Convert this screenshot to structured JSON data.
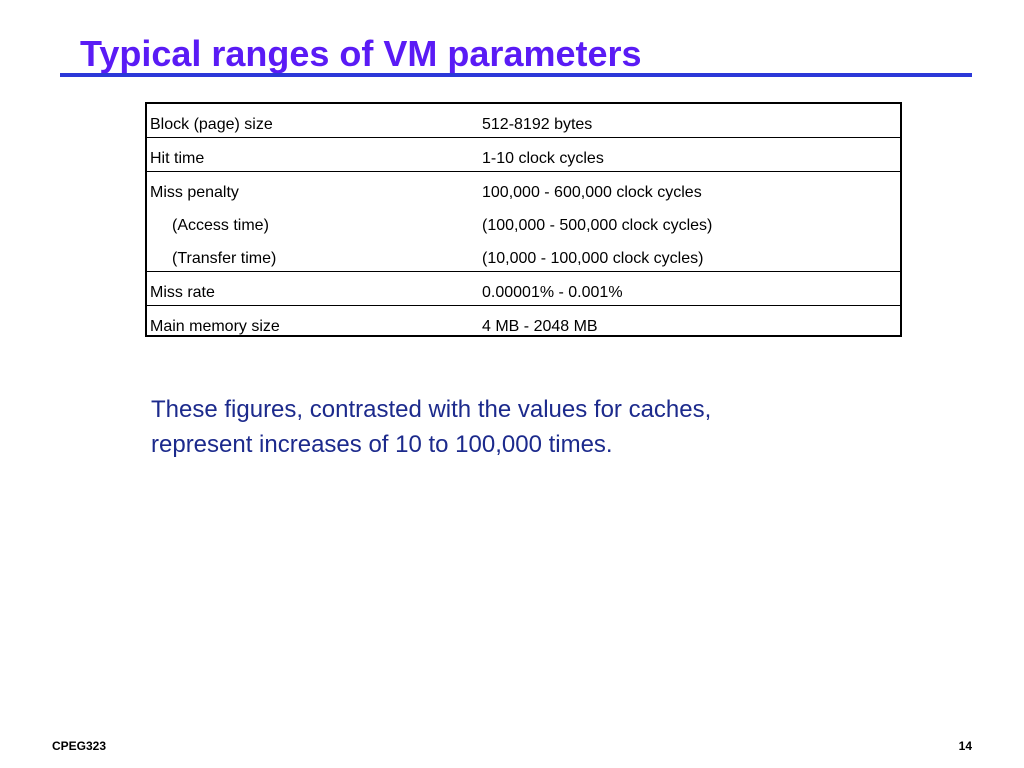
{
  "slide": {
    "title": "Typical ranges of VM parameters",
    "title_color": "#5a1bf5",
    "rule_color": "#2b38d8"
  },
  "table": {
    "groups": [
      {
        "rows": [
          {
            "label": "Block (page) size",
            "value": "512-8192 bytes"
          }
        ]
      },
      {
        "rows": [
          {
            "label": "Hit time",
            "value": "1-10 clock cycles"
          }
        ]
      },
      {
        "rows": [
          {
            "label": "Miss penalty",
            "value": "100,000 - 600,000 clock cycles"
          },
          {
            "label": "(Access time)",
            "value": "(100,000 - 500,000 clock cycles)"
          },
          {
            "label": "(Transfer time)",
            "value": "(10,000 - 100,000 clock cycles)"
          }
        ]
      },
      {
        "rows": [
          {
            "label": "Miss rate",
            "value": "0.00001% - 0.001%"
          }
        ]
      },
      {
        "rows": [
          {
            "label": "Main memory size",
            "value": "4 MB - 2048 MB"
          }
        ]
      }
    ]
  },
  "note": {
    "line1": "These figures, contrasted with the values for caches,",
    "line2": "represent increases of 10 to 100,000 times.",
    "color": "#1c2a8c"
  },
  "footer": {
    "course": "CPEG323",
    "page_number": "14"
  }
}
